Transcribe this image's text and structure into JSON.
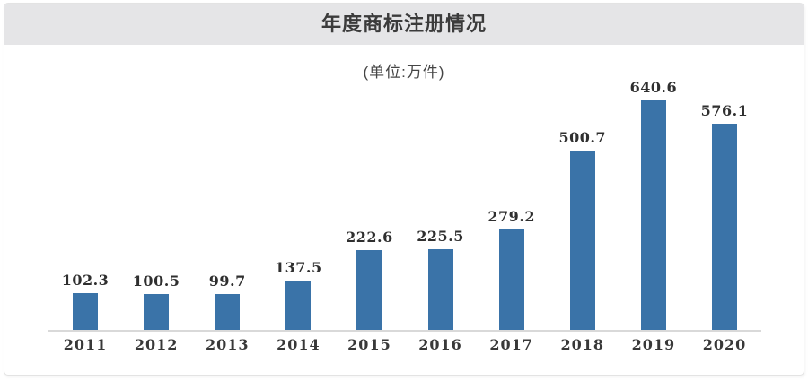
{
  "title": "年度商标注册情况",
  "unit_label": "(单位:万件)",
  "colors": {
    "bar": "#3a73a8",
    "header_bg": "#e5e5e7",
    "axis_line": "#d9d9d9",
    "title_text": "#3b3b3b"
  },
  "chart_data": {
    "type": "bar",
    "title": "年度商标注册情况",
    "subtitle": "(单位:万件)",
    "categories": [
      "2011",
      "2012",
      "2013",
      "2014",
      "2015",
      "2016",
      "2017",
      "2018",
      "2019",
      "2020"
    ],
    "values": [
      102.3,
      100.5,
      99.7,
      137.5,
      222.6,
      225.5,
      279.2,
      500.7,
      640.6,
      576.1
    ],
    "xlabel": "",
    "ylabel": "",
    "unit": "万件",
    "ylim": [
      0,
      700
    ],
    "grid": false,
    "legend": "none",
    "data_labels": true
  }
}
